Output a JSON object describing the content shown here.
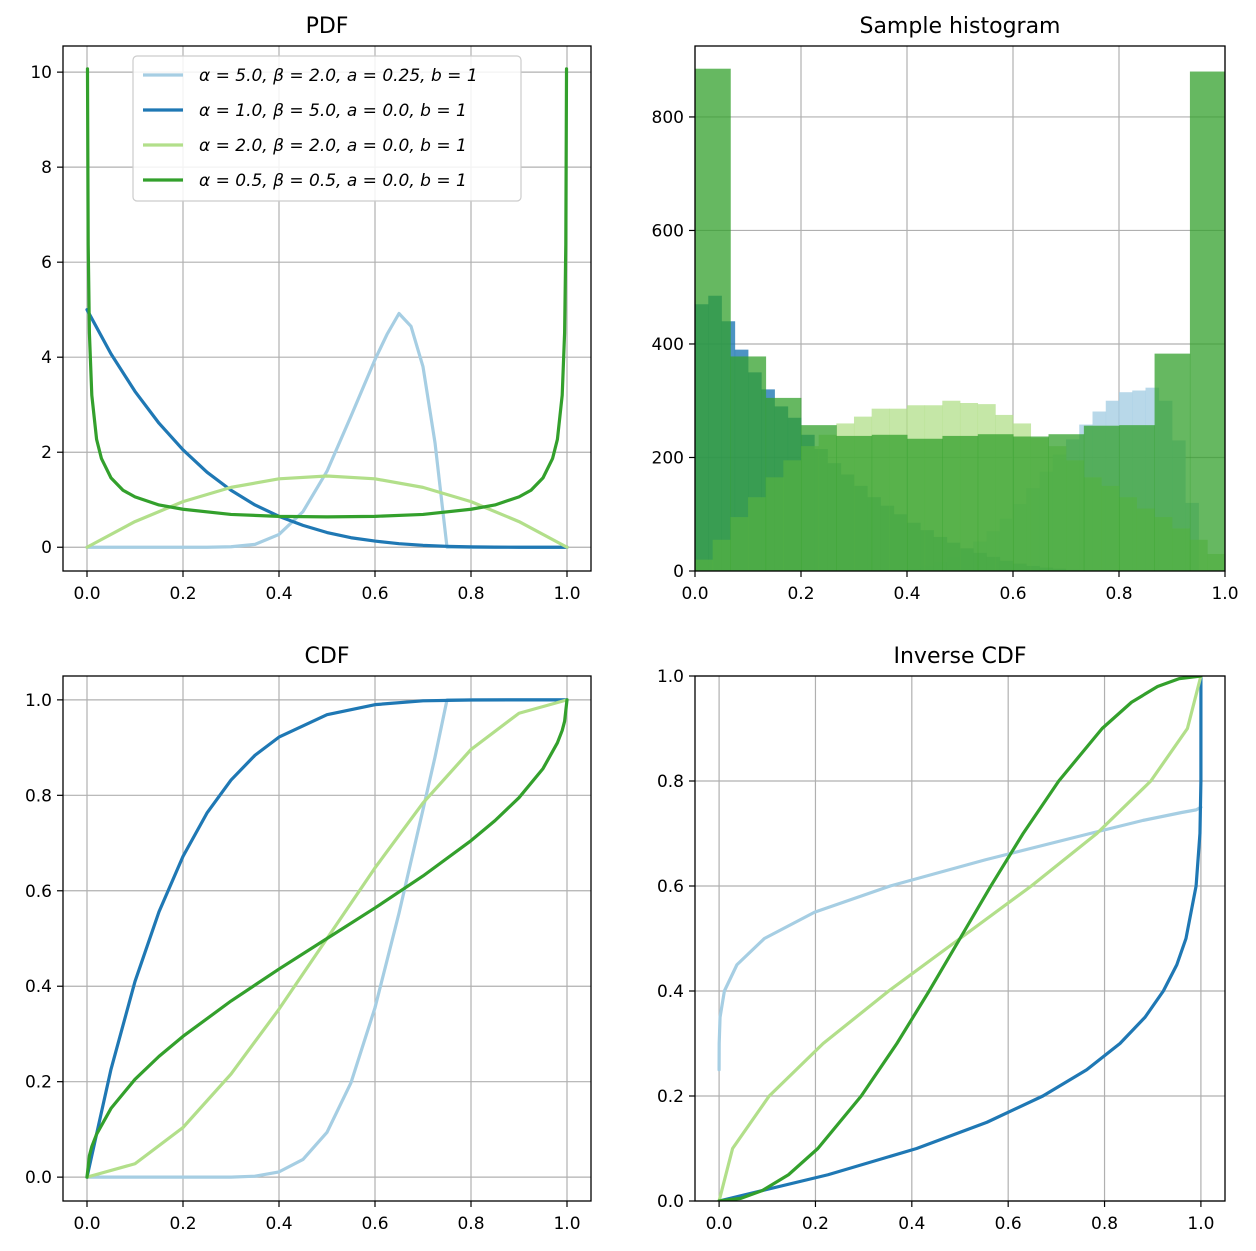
{
  "chart_data": [
    {
      "id": "pdf",
      "type": "line",
      "title": "PDF",
      "xlim": [
        -0.05,
        1.05
      ],
      "ylim": [
        -0.5,
        10.55
      ],
      "xticks": [
        0.0,
        0.2,
        0.4,
        0.6,
        0.8,
        1.0
      ],
      "xtick_labels": [
        "0.0",
        "0.2",
        "0.4",
        "0.6",
        "0.8",
        "1.0"
      ],
      "yticks": [
        0,
        2,
        4,
        6,
        8,
        10
      ],
      "ytick_labels": [
        "0",
        "2",
        "4",
        "6",
        "8",
        "10"
      ],
      "grid": true,
      "legend_placement": "top-center",
      "series": [
        {
          "name": "α = 5.0, β = 2.0, a = 0.25, b = 1",
          "color": "#a6cee3",
          "x": [
            0.0,
            0.25,
            0.3,
            0.35,
            0.4,
            0.45,
            0.5,
            0.55,
            0.6,
            0.625,
            0.65,
            0.675,
            0.7,
            0.725,
            0.75,
            0.76,
            1.0
          ],
          "y": [
            0.0,
            0.0,
            0.01,
            0.06,
            0.27,
            0.75,
            1.6,
            2.76,
            3.95,
            4.48,
            4.92,
            4.65,
            3.8,
            2.2,
            0.0,
            0.0,
            0.0
          ]
        },
        {
          "name": "α = 1.0, β = 5.0, a = 0.0, b = 1",
          "color": "#1f78b4",
          "x": [
            0.0,
            0.05,
            0.1,
            0.15,
            0.2,
            0.25,
            0.3,
            0.35,
            0.4,
            0.45,
            0.5,
            0.55,
            0.6,
            0.65,
            0.7,
            0.75,
            0.8,
            0.85,
            0.9,
            0.95,
            1.0
          ],
          "y": [
            5.0,
            4.07,
            3.28,
            2.61,
            2.05,
            1.58,
            1.2,
            0.89,
            0.65,
            0.46,
            0.31,
            0.2,
            0.13,
            0.075,
            0.04,
            0.02,
            0.008,
            0.0025,
            0.0005,
            0.0,
            0.0
          ]
        },
        {
          "name": "α = 2.0, β = 2.0, a = 0.0, b = 1",
          "color": "#b2df8a",
          "x": [
            0.0,
            0.1,
            0.2,
            0.3,
            0.4,
            0.5,
            0.6,
            0.7,
            0.8,
            0.9,
            1.0
          ],
          "y": [
            0.0,
            0.54,
            0.96,
            1.26,
            1.44,
            1.5,
            1.44,
            1.26,
            0.96,
            0.54,
            0.0
          ]
        },
        {
          "name": "α = 0.5, β = 0.5, a = 0.0, b = 1",
          "color": "#33a02c",
          "x": [
            0.001,
            0.0025,
            0.005,
            0.01,
            0.02,
            0.03,
            0.05,
            0.075,
            0.1,
            0.15,
            0.2,
            0.3,
            0.4,
            0.5,
            0.6,
            0.7,
            0.8,
            0.85,
            0.9,
            0.925,
            0.95,
            0.97,
            0.98,
            0.99,
            0.995,
            0.9975,
            0.999
          ],
          "y": [
            10.07,
            6.37,
            4.51,
            3.2,
            2.27,
            1.87,
            1.46,
            1.2,
            1.06,
            0.89,
            0.8,
            0.69,
            0.65,
            0.64,
            0.65,
            0.69,
            0.8,
            0.89,
            1.06,
            1.2,
            1.46,
            1.87,
            2.27,
            3.2,
            4.51,
            6.37,
            10.07
          ]
        }
      ]
    },
    {
      "id": "hist",
      "type": "bar",
      "title": "Sample histogram",
      "xlim": [
        0.0,
        1.0
      ],
      "ylim": [
        0,
        925
      ],
      "xticks": [
        0.0,
        0.2,
        0.4,
        0.6,
        0.8,
        1.0
      ],
      "xtick_labels": [
        "0.0",
        "0.2",
        "0.4",
        "0.6",
        "0.8",
        "1.0"
      ],
      "yticks": [
        0,
        200,
        400,
        600,
        800
      ],
      "ytick_labels": [
        "0",
        "200",
        "400",
        "600",
        "800"
      ],
      "grid": true,
      "series": [
        {
          "color": "#a6cee3",
          "opacity": 0.8,
          "bin_start": 0.25,
          "bin_width": 0.025,
          "counts": [
            0,
            0,
            0,
            0,
            1,
            3,
            5,
            10,
            16,
            25,
            38,
            52,
            70,
            92,
            118,
            146,
            175,
            205,
            232,
            258,
            281,
            300,
            315,
            318,
            323,
            300,
            230,
            120,
            0,
            0
          ]
        },
        {
          "color": "#1f78b4",
          "opacity": 0.8,
          "bin_start": 0.0,
          "bin_width": 0.025,
          "counts": [
            470,
            485,
            440,
            390,
            350,
            320,
            290,
            270,
            240,
            215,
            190,
            170,
            150,
            130,
            115,
            100,
            85,
            72,
            60,
            50,
            40,
            32,
            25,
            18,
            13,
            9,
            6,
            4,
            2,
            1,
            0,
            0,
            0,
            0,
            0,
            0,
            0,
            0,
            0,
            0
          ]
        },
        {
          "color": "#b2df8a",
          "opacity": 0.75,
          "bin_start": 0.0,
          "bin_width": 0.03333,
          "counts": [
            20,
            55,
            95,
            130,
            165,
            195,
            220,
            240,
            260,
            272,
            286,
            286,
            292,
            292,
            300,
            296,
            294,
            275,
            260,
            235,
            220,
            195,
            165,
            150,
            130,
            110,
            95,
            75,
            55,
            30
          ]
        },
        {
          "color": "#33a02c",
          "opacity": 0.75,
          "bin_start": 0.0,
          "bin_width": 0.0667,
          "counts": [
            885,
            378,
            305,
            257,
            238,
            240,
            233,
            238,
            241,
            237,
            241,
            256,
            257,
            383,
            880
          ]
        }
      ]
    },
    {
      "id": "cdf",
      "type": "line",
      "title": "CDF",
      "xlim": [
        -0.05,
        1.05
      ],
      "ylim": [
        -0.05,
        1.05
      ],
      "xticks": [
        0.0,
        0.2,
        0.4,
        0.6,
        0.8,
        1.0
      ],
      "xtick_labels": [
        "0.0",
        "0.2",
        "0.4",
        "0.6",
        "0.8",
        "1.0"
      ],
      "yticks": [
        0.0,
        0.2,
        0.4,
        0.6,
        0.8,
        1.0
      ],
      "ytick_labels": [
        "0.0",
        "0.2",
        "0.4",
        "0.6",
        "0.8",
        "1.0"
      ],
      "grid": true,
      "series": [
        {
          "color": "#a6cee3",
          "x": [
            0.0,
            0.25,
            0.3,
            0.35,
            0.4,
            0.45,
            0.5,
            0.55,
            0.6,
            0.65,
            0.7,
            0.725,
            0.75,
            1.0
          ],
          "y": [
            0.0,
            0.0,
            0.0001,
            0.002,
            0.011,
            0.037,
            0.094,
            0.198,
            0.355,
            0.553,
            0.77,
            0.88,
            1.0,
            1.0
          ]
        },
        {
          "color": "#1f78b4",
          "x": [
            0.0,
            0.05,
            0.1,
            0.15,
            0.2,
            0.25,
            0.3,
            0.35,
            0.4,
            0.5,
            0.6,
            0.7,
            0.8,
            0.9,
            1.0
          ],
          "y": [
            0.0,
            0.226,
            0.41,
            0.556,
            0.672,
            0.763,
            0.832,
            0.884,
            0.922,
            0.969,
            0.99,
            0.998,
            0.9997,
            1.0,
            1.0
          ]
        },
        {
          "color": "#b2df8a",
          "x": [
            0.0,
            0.1,
            0.2,
            0.3,
            0.4,
            0.5,
            0.6,
            0.7,
            0.8,
            0.9,
            1.0
          ],
          "y": [
            0.0,
            0.028,
            0.104,
            0.216,
            0.352,
            0.5,
            0.648,
            0.784,
            0.896,
            0.972,
            1.0
          ]
        },
        {
          "color": "#33a02c",
          "x": [
            0.0,
            0.005,
            0.01,
            0.02,
            0.05,
            0.1,
            0.15,
            0.2,
            0.3,
            0.4,
            0.5,
            0.6,
            0.7,
            0.8,
            0.85,
            0.9,
            0.95,
            0.98,
            0.99,
            0.995,
            1.0
          ],
          "y": [
            0.0,
            0.045,
            0.064,
            0.09,
            0.144,
            0.205,
            0.253,
            0.295,
            0.369,
            0.436,
            0.5,
            0.564,
            0.631,
            0.705,
            0.747,
            0.795,
            0.856,
            0.91,
            0.936,
            0.955,
            1.0
          ]
        }
      ]
    },
    {
      "id": "icdf",
      "type": "line",
      "title": "Inverse CDF",
      "xlim": [
        -0.05,
        1.05
      ],
      "ylim": [
        0.0,
        1.0
      ],
      "xticks": [
        0.0,
        0.2,
        0.4,
        0.6,
        0.8,
        1.0
      ],
      "xtick_labels": [
        "0.0",
        "0.2",
        "0.4",
        "0.6",
        "0.8",
        "1.0"
      ],
      "yticks": [
        0.0,
        0.2,
        0.4,
        0.6,
        0.8,
        1.0
      ],
      "ytick_labels": [
        "0.0",
        "0.2",
        "0.4",
        "0.6",
        "0.8",
        "1.0"
      ],
      "grid": true,
      "series": [
        {
          "color": "#a6cee3",
          "x": [
            0.0,
            0.0002,
            0.002,
            0.011,
            0.037,
            0.094,
            0.198,
            0.355,
            0.553,
            0.77,
            0.88,
            0.96,
            0.99,
            1.0
          ],
          "y": [
            0.25,
            0.3,
            0.35,
            0.4,
            0.45,
            0.5,
            0.55,
            0.6,
            0.65,
            0.7,
            0.725,
            0.74,
            0.745,
            0.75
          ]
        },
        {
          "color": "#1f78b4",
          "x": [
            0.0,
            0.226,
            0.41,
            0.556,
            0.672,
            0.763,
            0.832,
            0.884,
            0.922,
            0.95,
            0.969,
            0.99,
            0.998,
            1.0,
            1.0
          ],
          "y": [
            0.0,
            0.05,
            0.1,
            0.15,
            0.2,
            0.25,
            0.3,
            0.35,
            0.4,
            0.45,
            0.5,
            0.6,
            0.7,
            0.8,
            1.0
          ]
        },
        {
          "color": "#b2df8a",
          "x": [
            0.0,
            0.028,
            0.104,
            0.216,
            0.352,
            0.5,
            0.648,
            0.784,
            0.896,
            0.972,
            1.0
          ],
          "y": [
            0.0,
            0.1,
            0.2,
            0.3,
            0.4,
            0.5,
            0.6,
            0.7,
            0.8,
            0.9,
            1.0
          ]
        },
        {
          "color": "#33a02c",
          "x": [
            0.0,
            0.045,
            0.09,
            0.144,
            0.205,
            0.295,
            0.369,
            0.436,
            0.5,
            0.564,
            0.631,
            0.705,
            0.795,
            0.856,
            0.91,
            0.955,
            1.0
          ],
          "y": [
            0.0,
            0.005,
            0.02,
            0.05,
            0.1,
            0.2,
            0.3,
            0.4,
            0.5,
            0.6,
            0.7,
            0.8,
            0.9,
            0.95,
            0.98,
            0.995,
            1.0
          ]
        }
      ]
    }
  ]
}
